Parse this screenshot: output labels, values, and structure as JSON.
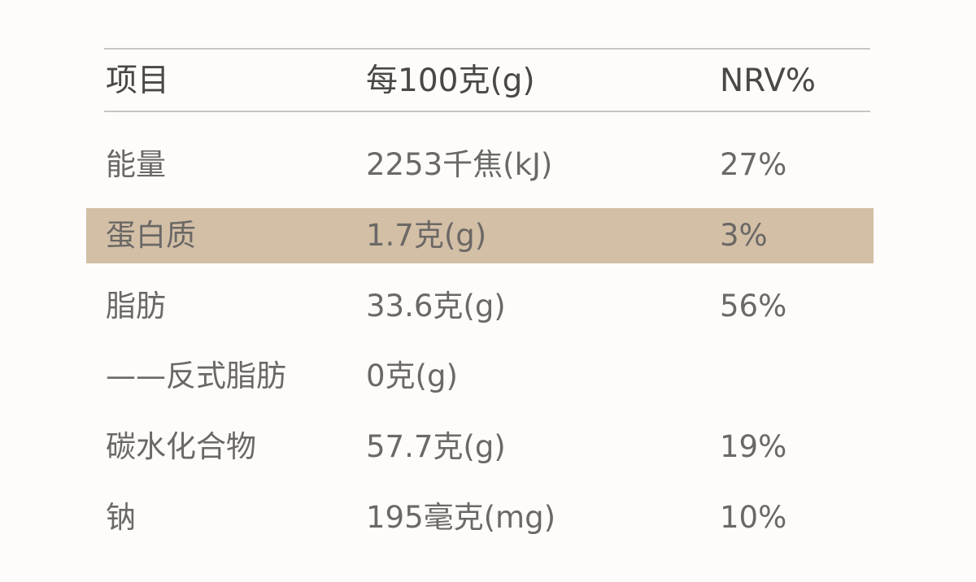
{
  "table": {
    "header": [
      "项目",
      "每100克(g)",
      "NRV%"
    ],
    "rows": [
      [
        "能量",
        "2253千焦(kJ)",
        "27%"
      ],
      [
        "蛋白质",
        "1.7克(g)",
        "3%"
      ],
      [
        "脂肪",
        "33.6克(g)",
        "56%"
      ],
      [
        "——反式脂肪",
        "0克(g)"
      ],
      [
        "碳水化合物",
        "57.7克(g)",
        "19%"
      ],
      [
        "钠",
        "195毫克(mg)",
        "10%"
      ]
    ]
  }
}
